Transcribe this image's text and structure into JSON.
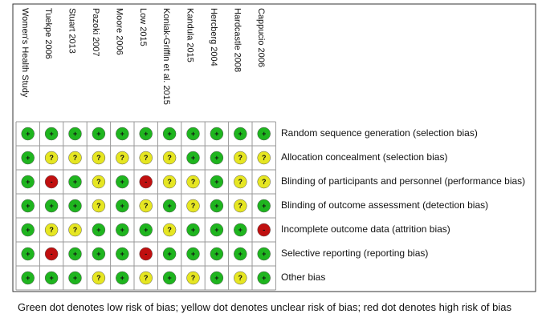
{
  "studies": [
    "Women's Health Study",
    "Tuekpe 2006",
    "Stuart 2013",
    "Pazoki 2007",
    "Moore 2006",
    "Low 2015",
    "Koniak-Griffin et al. 2015",
    "Kandula 2015",
    "Hercberg 2004",
    "Hardcastle 2008",
    "Cappucio 2006"
  ],
  "domains": [
    "Random sequence generation (selection bias)",
    "Allocation concealment (selection bias)",
    "Blinding of participants and personnel (performance bias)",
    "Blinding of outcome assessment (detection bias)",
    "Incomplete outcome data (attrition bias)",
    "Selective reporting (reporting bias)",
    "Other bias"
  ],
  "judgment_symbols": [
    "+",
    "?",
    "-"
  ],
  "judgment_colors": [
    "#1fb51f",
    "#e6e622",
    "#c01010"
  ],
  "judgments": [
    [
      "+",
      "+",
      "+",
      "+",
      "+",
      "+",
      "+",
      "+",
      "+",
      "+",
      "+"
    ],
    [
      "+",
      "?",
      "?",
      "?",
      "?",
      "?",
      "?",
      "+",
      "+",
      "?",
      "?"
    ],
    [
      "+",
      "-",
      "+",
      "?",
      "+",
      "-",
      "?",
      "?",
      "+",
      "?",
      "?"
    ],
    [
      "+",
      "+",
      "+",
      "?",
      "+",
      "?",
      "+",
      "?",
      "+",
      "?",
      "+"
    ],
    [
      "+",
      "?",
      "?",
      "+",
      "+",
      "+",
      "?",
      "+",
      "+",
      "+",
      "-"
    ],
    [
      "+",
      "-",
      "+",
      "+",
      "+",
      "-",
      "+",
      "+",
      "+",
      "+",
      "+"
    ],
    [
      "+",
      "+",
      "+",
      "?",
      "+",
      "?",
      "+",
      "?",
      "+",
      "?",
      "+"
    ]
  ],
  "caption": "Green dot denotes low risk of bias; yellow dot denotes unclear risk of bias; red dot denotes high risk of bias"
}
